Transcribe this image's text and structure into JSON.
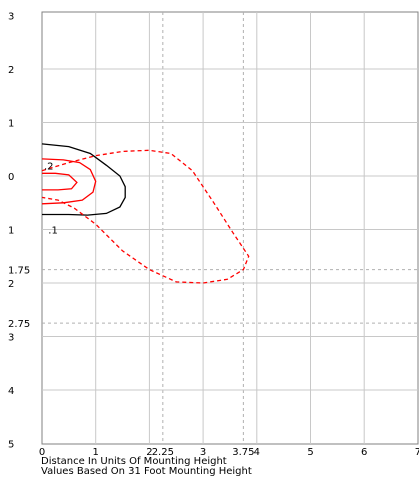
{
  "chart_data": {
    "type": "contour",
    "xlabel": "Distance In Units Of Mounting Height",
    "note": "Values Based On 31 Foot Mounting Height",
    "xlim": [
      0,
      7
    ],
    "ylim": [
      3,
      -5
    ],
    "x_ticks": [
      {
        "value": 0,
        "label": "0"
      },
      {
        "value": 1,
        "label": "1"
      },
      {
        "value": 2,
        "label": "2"
      },
      {
        "value": 2.25,
        "label": "2.25"
      },
      {
        "value": 3,
        "label": "3"
      },
      {
        "value": 3.75,
        "label": "3.75"
      },
      {
        "value": 4,
        "label": "4"
      },
      {
        "value": 5,
        "label": "5"
      },
      {
        "value": 6,
        "label": "6"
      },
      {
        "value": 7,
        "label": "7"
      }
    ],
    "y_ticks": [
      {
        "value": 3,
        "label": "3"
      },
      {
        "value": 2,
        "label": "2"
      },
      {
        "value": 1,
        "label": "1"
      },
      {
        "value": 0,
        "label": "0"
      },
      {
        "value": -1,
        "label": "1"
      },
      {
        "value": -1.75,
        "label": "1.75"
      },
      {
        "value": -2,
        "label": "2"
      },
      {
        "value": -2.75,
        "label": "2.75"
      },
      {
        "value": -3,
        "label": "3"
      },
      {
        "value": -4,
        "label": "4"
      },
      {
        "value": -5,
        "label": "5"
      }
    ],
    "grid": "on",
    "grid_x_solid": [
      1,
      2,
      3,
      4,
      5,
      6
    ],
    "grid_x_dashed": [
      2.25,
      3.75
    ],
    "grid_y_solid": [
      2,
      1,
      0,
      -1,
      -2,
      -3,
      -4
    ],
    "grid_y_dashed": [
      -1.75,
      -2.75
    ],
    "series": [
      {
        "name": ".1",
        "color": "#000000",
        "style": "solid",
        "points": [
          [
            0,
            0.6
          ],
          [
            0.5,
            0.55
          ],
          [
            0.9,
            0.42
          ],
          [
            1.2,
            0.2
          ],
          [
            1.45,
            0.0
          ],
          [
            1.55,
            -0.2
          ],
          [
            1.55,
            -0.4
          ],
          [
            1.45,
            -0.58
          ],
          [
            1.2,
            -0.7
          ],
          [
            0.85,
            -0.73
          ],
          [
            0.5,
            -0.72
          ],
          [
            0.2,
            -0.72
          ],
          [
            0,
            -0.72
          ]
        ]
      },
      {
        "name": ".2",
        "color": "#ff0000",
        "style": "solid",
        "points": [
          [
            0,
            0.32
          ],
          [
            0.4,
            0.3
          ],
          [
            0.7,
            0.25
          ],
          [
            0.9,
            0.12
          ],
          [
            1.0,
            -0.1
          ],
          [
            0.95,
            -0.3
          ],
          [
            0.75,
            -0.45
          ],
          [
            0.4,
            -0.5
          ],
          [
            0,
            -0.52
          ]
        ]
      },
      {
        "name": "",
        "color": "#ff0000",
        "style": "solid",
        "points": [
          [
            0,
            0.05
          ],
          [
            0.25,
            0.05
          ],
          [
            0.5,
            0.02
          ],
          [
            0.65,
            -0.12
          ],
          [
            0.55,
            -0.24
          ],
          [
            0.3,
            -0.26
          ],
          [
            0,
            -0.26
          ]
        ]
      },
      {
        "name": "",
        "color": "#ff0000",
        "style": "dashed",
        "points": [
          [
            0,
            0.1
          ],
          [
            0.5,
            0.25
          ],
          [
            1.0,
            0.38
          ],
          [
            1.5,
            0.46
          ],
          [
            2.0,
            0.48
          ],
          [
            2.4,
            0.42
          ],
          [
            2.8,
            0.1
          ],
          [
            3.2,
            -0.5
          ],
          [
            3.55,
            -1.05
          ],
          [
            3.85,
            -1.5
          ],
          [
            3.75,
            -1.75
          ],
          [
            3.45,
            -1.93
          ],
          [
            3.0,
            -2.0
          ],
          [
            2.5,
            -1.98
          ],
          [
            2.0,
            -1.75
          ],
          [
            1.5,
            -1.4
          ],
          [
            1.0,
            -0.9
          ],
          [
            0.6,
            -0.6
          ],
          [
            0.3,
            -0.45
          ],
          [
            0,
            -0.4
          ]
        ]
      }
    ],
    "annotations": [
      {
        "text": ".2",
        "x": 0.0,
        "y": 0.2
      },
      {
        "text": ".1",
        "x": 0.08,
        "y": -1.0
      }
    ]
  }
}
